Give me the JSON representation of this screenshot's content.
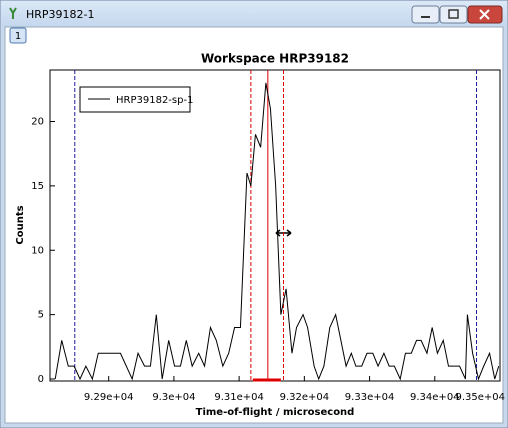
{
  "window": {
    "title": "HRP39182-1",
    "tab": "1"
  },
  "chart_data": {
    "type": "line",
    "title": "Workspace HRP39182",
    "x_label": "Time-of-flight / microsecond",
    "y_label": "Counts",
    "x": [
      92818,
      92828,
      92838,
      92847,
      92856,
      92865,
      92875,
      92884,
      92902,
      92918,
      92927,
      92936,
      92945,
      92955,
      92964,
      92973,
      92982,
      92992,
      93001,
      93010,
      93019,
      93028,
      93038,
      93047,
      93056,
      93065,
      93075,
      93084,
      93093,
      93102,
      93112,
      93118,
      93125,
      93133,
      93141,
      93148,
      93156,
      93164,
      93172,
      93181,
      93188,
      93198,
      93205,
      93215,
      93222,
      93230,
      93239,
      93248,
      93256,
      93264,
      93272,
      93279,
      93288,
      93296,
      93305,
      93313,
      93322,
      93330,
      93338,
      93347,
      93355,
      93364,
      93372,
      93379,
      93388,
      93396,
      93404,
      93413,
      93421,
      93430,
      93438,
      93447,
      93450,
      93458,
      93467,
      93475,
      93484,
      93492,
      93498
    ],
    "series": [
      {
        "name": "HRP39182-sp-1",
        "color": "#000000",
        "values": [
          0,
          3,
          1,
          1,
          0,
          1,
          0,
          2,
          2,
          2,
          1,
          0,
          2,
          1,
          1,
          5,
          0,
          3,
          1,
          1,
          3,
          1,
          2,
          1,
          4,
          3,
          1,
          2,
          4,
          4,
          16,
          15,
          19,
          18,
          23,
          21,
          15,
          5,
          7,
          2,
          4,
          5,
          4,
          1,
          0,
          1,
          4,
          5,
          3,
          1,
          2,
          1,
          1,
          2,
          2,
          1,
          2,
          1,
          1,
          0,
          2,
          2,
          3,
          3,
          2,
          4,
          2,
          3,
          1,
          1,
          1,
          0,
          5,
          2,
          0,
          1,
          2,
          0,
          1
        ]
      }
    ],
    "markers": [
      {
        "x": 92848,
        "color": "#1a1a9e",
        "style": "dashed"
      },
      {
        "x": 93464,
        "color": "#1a1a9e",
        "style": "dashed"
      },
      {
        "x": 93118,
        "color": "#dd0000",
        "style": "dashed"
      },
      {
        "x": 93168,
        "color": "#dd0000",
        "style": "dashed"
      },
      {
        "x": 93144,
        "color": "#dd0000",
        "style": "solid"
      }
    ],
    "integration_range": [
      93121,
      93164
    ],
    "xlim": [
      92810,
      93500
    ],
    "ylim": [
      0,
      24
    ],
    "xticks": [
      {
        "value": 92900,
        "label": "9.29e+04"
      },
      {
        "value": 93000,
        "label": "9.3e+04"
      },
      {
        "value": 93100,
        "label": "9.31e+04"
      },
      {
        "value": 93200,
        "label": "9.32e+04"
      },
      {
        "value": 93300,
        "label": "9.33e+04"
      },
      {
        "value": 93400,
        "label": "9.34e+04"
      },
      {
        "value": 93500,
        "label": "9.35e+04"
      }
    ],
    "yticks": [
      0,
      5,
      10,
      15,
      20
    ],
    "legend": "top-left"
  }
}
